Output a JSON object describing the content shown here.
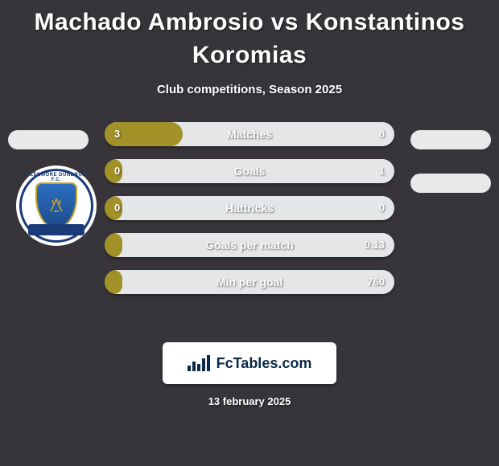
{
  "title_line1": "Machado Ambrosio vs Konstantinos",
  "title_line2": "Koromias",
  "subtitle": "Club competitions, Season 2025",
  "chart": {
    "bar_bg_color": "#e4e6e8",
    "fill_color": "#a29127",
    "value_text_color": "#ffffff",
    "label_text_color": "#ffffff",
    "rows": [
      {
        "label": "Matches",
        "left": "3",
        "right": "8",
        "fill_pct": 27
      },
      {
        "label": "Goals",
        "left": "0",
        "right": "1",
        "fill_pct": 6
      },
      {
        "label": "Hattricks",
        "left": "0",
        "right": "0",
        "fill_pct": 6
      },
      {
        "label": "Goals per match",
        "left": "",
        "right": "0.13",
        "fill_pct": 6
      },
      {
        "label": "Min per goal",
        "left": "",
        "right": "760",
        "fill_pct": 6
      }
    ]
  },
  "club_logo": {
    "top_text": "GLENMORE DUNDRUM F.C.",
    "banner_text": ""
  },
  "footer": {
    "brand": "FcTables.com",
    "date": "13 february 2025"
  },
  "colors": {
    "page_bg": "#37353a",
    "pill_bg": "#e9e9e9",
    "badge_bg": "#ffffff",
    "badge_text": "#0b2a4a"
  }
}
